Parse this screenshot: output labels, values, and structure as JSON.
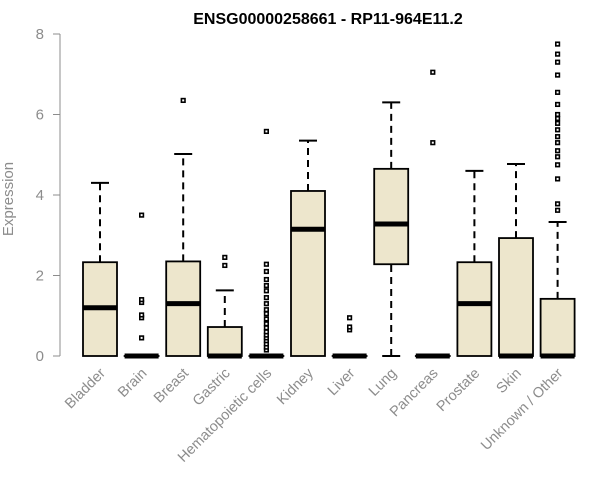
{
  "chart_data": {
    "type": "boxplot",
    "title": "ENSG00000258661 - RP11-964E11.2",
    "xlabel": "",
    "ylabel": "Expression",
    "ylim": [
      0,
      8
    ],
    "yticks": [
      0,
      2,
      4,
      6,
      8
    ],
    "box_fill": "#ede6cc",
    "categories": [
      "Bladder",
      "Brain",
      "Breast",
      "Gastric",
      "Hematopoietic cells",
      "Kidney",
      "Liver",
      "Lung",
      "Pancreas",
      "Prostate",
      "Skin",
      "Unknown / Other"
    ],
    "boxes": [
      {
        "min": 0,
        "q1": 0,
        "median": 1.2,
        "q3": 2.33,
        "max": 4.3,
        "outliers": []
      },
      {
        "min": 0,
        "q1": 0,
        "median": 0,
        "q3": 0,
        "max": 0,
        "outliers": [
          0.45,
          0.95,
          1.02,
          1.33,
          1.4,
          3.5
        ]
      },
      {
        "min": 0,
        "q1": 0,
        "median": 1.3,
        "q3": 2.35,
        "max": 5.02,
        "outliers": [
          6.35
        ]
      },
      {
        "min": 0,
        "q1": 0,
        "median": 0,
        "q3": 0.72,
        "max": 1.63,
        "outliers": [
          2.25,
          2.45
        ]
      },
      {
        "min": 0,
        "q1": 0,
        "median": 0,
        "q3": 0,
        "max": 0,
        "outliers": [
          0.15,
          0.22,
          0.3,
          0.38,
          0.45,
          0.52,
          0.6,
          0.7,
          0.8,
          0.92,
          1.05,
          1.15,
          1.3,
          1.45,
          1.62,
          1.75,
          1.9,
          2.1,
          2.28,
          5.58
        ]
      },
      {
        "min": 0,
        "q1": 0,
        "median": 3.15,
        "q3": 4.1,
        "max": 5.35,
        "outliers": []
      },
      {
        "min": 0,
        "q1": 0,
        "median": 0,
        "q3": 0,
        "max": 0,
        "outliers": [
          0.65,
          0.72,
          0.95
        ]
      },
      {
        "min": 0,
        "q1": 2.28,
        "median": 3.28,
        "q3": 4.65,
        "max": 6.3,
        "outliers": []
      },
      {
        "min": 0,
        "q1": 0,
        "median": 0,
        "q3": 0,
        "max": 0,
        "outliers": [
          5.3,
          7.05
        ]
      },
      {
        "min": 0,
        "q1": 0,
        "median": 1.3,
        "q3": 2.33,
        "max": 4.6,
        "outliers": []
      },
      {
        "min": 0,
        "q1": 0,
        "median": 0,
        "q3": 2.93,
        "max": 4.77,
        "outliers": []
      },
      {
        "min": 0,
        "q1": 0,
        "median": 0,
        "q3": 1.42,
        "max": 3.33,
        "outliers": [
          3.62,
          3.78,
          4.4,
          4.75,
          4.95,
          5.1,
          5.3,
          5.45,
          5.62,
          5.78,
          5.9,
          6.0,
          6.25,
          6.55,
          6.98,
          7.3,
          7.5,
          7.75
        ]
      }
    ]
  }
}
